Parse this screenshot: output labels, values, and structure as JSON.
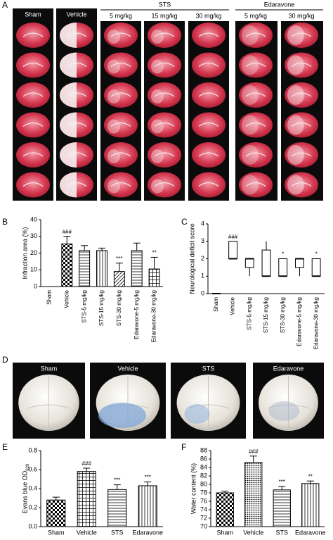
{
  "photo_panels": [
    {
      "panel": "A",
      "labels": [
        "Sham",
        "Vehicle",
        "5 mg/kg",
        "15 mg/kg",
        "30 mg/kg",
        "5 mg/kg",
        "30 mg/kg"
      ],
      "groups": [
        "STS",
        "Edaravone"
      ]
    },
    {
      "panel": "D",
      "labels": [
        "Sham",
        "Vehicle",
        "STS",
        "Edaravone"
      ]
    }
  ],
  "chart_data": [
    {
      "type": "bar",
      "panel": "B",
      "y_label": "Infraction area (%)",
      "categories": [
        "Sham",
        "Vehicle",
        "STS-5 mg/kg",
        "STS-15 mg/kg",
        "STS-30 mg/kg",
        "Edaravone-5 mg/kg",
        "Edaravone-30 mg/kg"
      ],
      "values": [
        0,
        25.5,
        21.5,
        21.5,
        9,
        21.5,
        10.5
      ],
      "errors": [
        0,
        4.5,
        3,
        1.5,
        5,
        4.5,
        7
      ],
      "annotations": [
        null,
        "###",
        null,
        null,
        "***",
        null,
        "**"
      ],
      "patterns": [
        "none",
        "checker",
        "hlines",
        "vlines",
        "dlines",
        "hlines",
        "grid"
      ],
      "rotate_labels": true,
      "ylim": [
        0,
        40
      ],
      "yticks": [
        0,
        10,
        20,
        30,
        40
      ]
    },
    {
      "type": "box",
      "panel": "C",
      "y_label": "Neurological deficit score",
      "categories": [
        "Sham",
        "Vehicle",
        "STS-5 mg/kg",
        "STS-15 mg/kg",
        "STS-30 mg/kg",
        "Edaravone-5 mg/kg",
        "Edaravone-30 mg/kg"
      ],
      "min": [
        0,
        2,
        1,
        1,
        1,
        1,
        1
      ],
      "q1": [
        0,
        2,
        1.5,
        1,
        1,
        1.5,
        1
      ],
      "median": [
        0,
        2,
        2,
        1,
        1,
        2,
        1
      ],
      "q3": [
        0,
        3,
        2,
        2.5,
        2,
        2,
        2
      ],
      "max": [
        0,
        3,
        2,
        3,
        2,
        2,
        2
      ],
      "annotations": [
        null,
        "###",
        null,
        null,
        "*",
        null,
        "*"
      ],
      "rotate_labels": true,
      "ylim": [
        0,
        4
      ],
      "yticks": [
        0,
        1,
        2,
        3,
        4
      ]
    },
    {
      "type": "bar",
      "panel": "E",
      "y_label": "Evans blue OD",
      "y_label_subscript": "620",
      "categories": [
        "Sham",
        "Vehicle",
        "STS",
        "Edaravone"
      ],
      "values": [
        0.28,
        0.58,
        0.39,
        0.43
      ],
      "errors": [
        0.03,
        0.035,
        0.05,
        0.04
      ],
      "annotations": [
        null,
        "###",
        "***",
        "***"
      ],
      "patterns": [
        "checker",
        "grid",
        "hlines",
        "vlines"
      ],
      "rotate_labels": false,
      "ylim": [
        0,
        0.8
      ],
      "yticks": [
        {
          "value": 0,
          "label": "0.0"
        },
        0.2,
        0.4,
        0.6,
        0.8
      ]
    },
    {
      "type": "bar",
      "panel": "F",
      "y_label": "Water content (%)",
      "categories": [
        "Sham",
        "Vehicle",
        "STS",
        "Edaravone"
      ],
      "values": [
        78,
        85.2,
        78.7,
        80.2
      ],
      "errors": [
        0.4,
        1.5,
        0.8,
        0.6
      ],
      "annotations": [
        null,
        "###",
        "***",
        "**"
      ],
      "patterns": [
        "checker",
        "dots",
        "hlines",
        "vlines"
      ],
      "rotate_labels": false,
      "ylim": [
        70,
        88
      ],
      "yticks": [
        70,
        72,
        74,
        76,
        78,
        80,
        82,
        84,
        86,
        88
      ]
    }
  ]
}
